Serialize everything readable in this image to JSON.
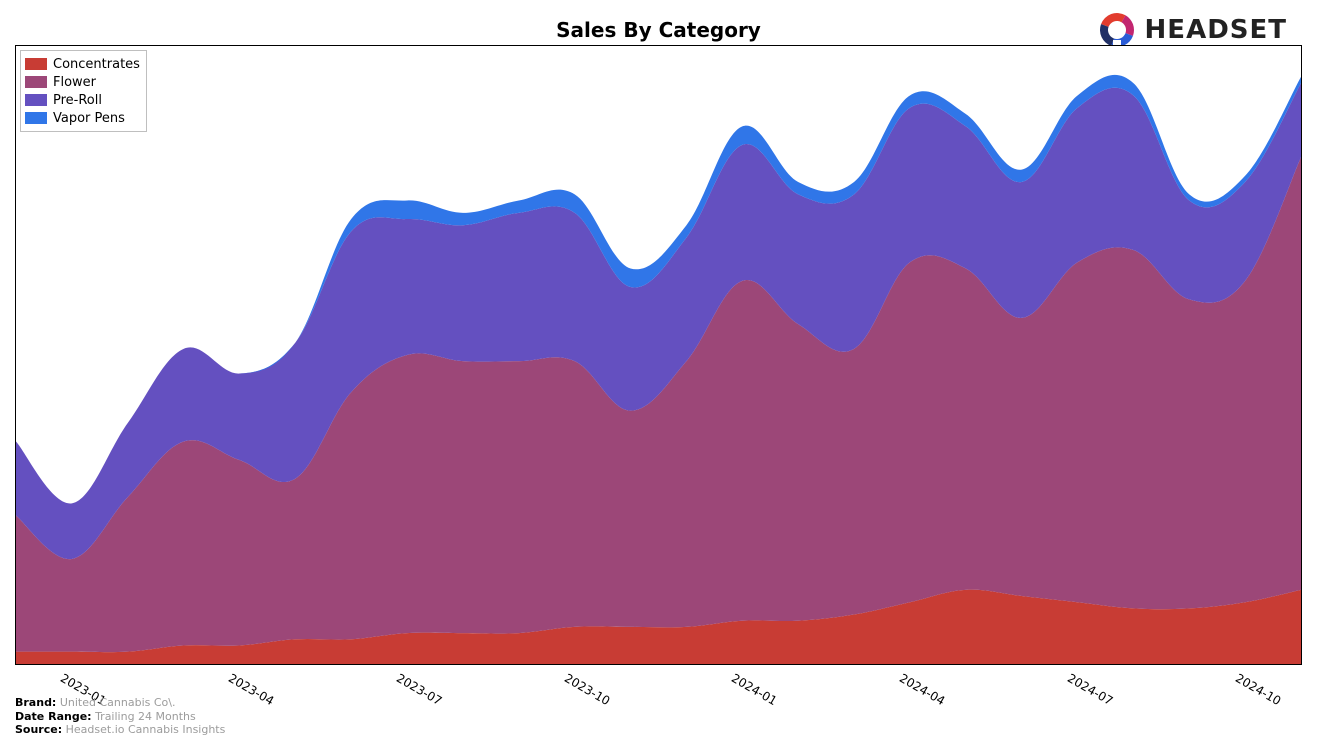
{
  "title": "Sales By Category",
  "logo_text": "HEADSET",
  "logo_colors": [
    "#e23c2e",
    "#c22670",
    "#2a5cd6",
    "#213066"
  ],
  "chart": {
    "type": "stacked-area-stream",
    "background_color": "#ffffff",
    "border_color": "#000000",
    "xlim": [
      0,
      23
    ],
    "ylim": [
      0,
      100
    ],
    "y_axis_visible": false,
    "x_tick_rotation_deg": 30,
    "x_tick_fontsize": 12,
    "title_fontsize": 20,
    "title_fontweight": "bold",
    "legend_fontsize": 13,
    "smoothing": true,
    "series": [
      {
        "name": "Concentrates",
        "color": "#c83c34",
        "values": [
          2,
          2,
          2,
          3,
          3,
          4,
          4,
          5,
          5,
          5,
          6,
          6,
          6,
          7,
          7,
          8,
          10,
          12,
          11,
          10,
          9,
          9,
          10,
          12
        ]
      },
      {
        "name": "Flower",
        "color": "#9c4778",
        "values": [
          22,
          15,
          25,
          33,
          30,
          26,
          40,
          45,
          44,
          44,
          43,
          35,
          43,
          55,
          48,
          43,
          55,
          52,
          45,
          55,
          58,
          50,
          52,
          70
        ]
      },
      {
        "name": "Pre-Roll",
        "color": "#6450c0",
        "values": [
          12,
          9,
          12,
          15,
          14,
          22,
          26,
          22,
          22,
          24,
          24,
          20,
          20,
          22,
          21,
          25,
          25,
          23,
          22,
          25,
          25,
          16,
          16,
          12
        ]
      },
      {
        "name": "Vapor Pens",
        "color": "#3076e8",
        "values": [
          0,
          0,
          0,
          0,
          0,
          0,
          2,
          3,
          2,
          2,
          3,
          3,
          2,
          3,
          2,
          2,
          2,
          2,
          2,
          2,
          2,
          1,
          1,
          1
        ]
      }
    ],
    "x_tick_labels": [
      {
        "pos": 1,
        "label": "2023-01"
      },
      {
        "pos": 4,
        "label": "2023-04"
      },
      {
        "pos": 7,
        "label": "2023-07"
      },
      {
        "pos": 10,
        "label": "2023-10"
      },
      {
        "pos": 13,
        "label": "2024-01"
      },
      {
        "pos": 16,
        "label": "2024-04"
      },
      {
        "pos": 19,
        "label": "2024-07"
      },
      {
        "pos": 22,
        "label": "2024-10"
      }
    ]
  },
  "meta": {
    "brand_label": "Brand:",
    "brand_value": "United Cannabis Co\\.",
    "date_range_label": "Date Range:",
    "date_range_value": "Trailing 24 Months",
    "source_label": "Source:",
    "source_value": "Headset.io Cannabis Insights"
  }
}
